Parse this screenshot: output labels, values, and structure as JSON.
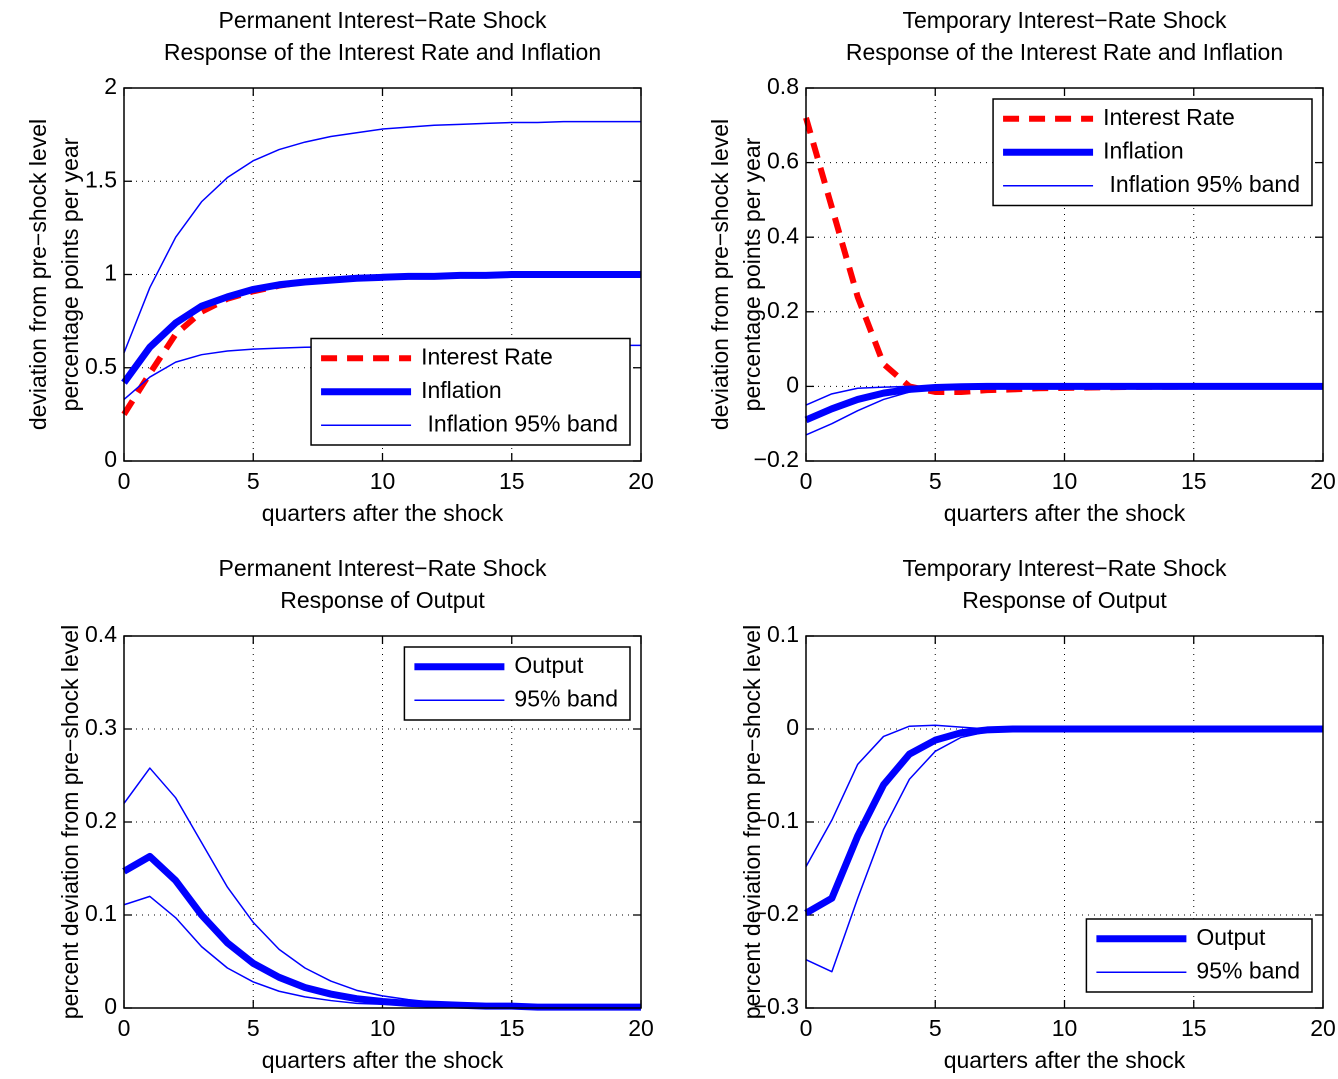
{
  "chart_data": [
    {
      "type": "line",
      "title": "Permanent Interest−Rate Shock",
      "subtitle": "Response of the Interest Rate and Inflation",
      "x_label": "quarters after the shock",
      "y_label": [
        "deviation from pre−shock level",
        "percentage points  per year"
      ],
      "x": [
        0,
        1,
        2,
        3,
        4,
        5,
        6,
        7,
        8,
        9,
        10,
        11,
        12,
        13,
        14,
        15,
        16,
        17,
        18,
        19,
        20
      ],
      "xlim": [
        0,
        20
      ],
      "xticks": [
        0,
        5,
        10,
        15,
        20
      ],
      "ylim": [
        0,
        2
      ],
      "yticks": [
        0,
        0.5,
        1,
        1.5,
        2
      ],
      "grid": true,
      "legend": "lower right",
      "series": [
        {
          "name": "Interest Rate",
          "color": "#ff0000",
          "linestyle": "dashed",
          "linewidth": 6,
          "values": [
            0.25,
            0.47,
            0.68,
            0.8,
            0.87,
            0.91,
            0.94,
            0.96,
            0.97,
            0.98,
            0.985,
            0.99,
            0.99,
            0.995,
            0.995,
            1,
            1,
            1,
            1,
            1,
            1
          ]
        },
        {
          "name": "Inflation",
          "color": "#0000ff",
          "linestyle": "solid",
          "linewidth": 7,
          "values": [
            0.42,
            0.61,
            0.74,
            0.83,
            0.88,
            0.92,
            0.945,
            0.96,
            0.97,
            0.98,
            0.985,
            0.99,
            0.99,
            0.995,
            0.995,
            1,
            1,
            1,
            1,
            1,
            1
          ]
        },
        {
          "name": " Inflation 95% band",
          "color": "#0000ff",
          "linestyle": "solid",
          "linewidth": 1.5,
          "upper": [
            0.58,
            0.93,
            1.2,
            1.39,
            1.52,
            1.61,
            1.67,
            1.71,
            1.74,
            1.76,
            1.78,
            1.79,
            1.8,
            1.805,
            1.81,
            1.815,
            1.815,
            1.82,
            1.82,
            1.82,
            1.82
          ],
          "lower": [
            0.33,
            0.45,
            0.53,
            0.57,
            0.59,
            0.6,
            0.605,
            0.61,
            0.612,
            0.615,
            0.615,
            0.617,
            0.618,
            0.619,
            0.62,
            0.62,
            0.62,
            0.62,
            0.62,
            0.62,
            0.62
          ]
        }
      ]
    },
    {
      "type": "line",
      "title": "Temporary Interest−Rate Shock",
      "subtitle": "Response of the Interest Rate and Inflation",
      "x_label": "quarters after the shock",
      "y_label": [
        "deviation from pre−shock level",
        "percentage points  per year"
      ],
      "x": [
        0,
        1,
        2,
        3,
        4,
        5,
        6,
        7,
        8,
        9,
        10,
        11,
        12,
        13,
        14,
        15,
        16,
        17,
        18,
        19,
        20
      ],
      "xlim": [
        0,
        20
      ],
      "xticks": [
        0,
        5,
        10,
        15,
        20
      ],
      "ylim": [
        -0.2,
        0.8
      ],
      "yticks": [
        {
          "value": -0.2,
          "label": "−0.2"
        },
        0,
        0.2,
        0.4,
        0.6,
        0.8
      ],
      "grid": true,
      "legend": "upper right",
      "series": [
        {
          "name": "Interest Rate",
          "color": "#ff0000",
          "linestyle": "dashed",
          "linewidth": 6,
          "values": [
            0.72,
            0.48,
            0.24,
            0.06,
            0.0,
            -0.015,
            -0.015,
            -0.01,
            -0.008,
            -0.005,
            -0.004,
            -0.003,
            -0.002,
            -0.001,
            -0.001,
            0,
            0,
            0,
            0,
            0,
            0
          ]
        },
        {
          "name": "Inflation",
          "color": "#0000ff",
          "linestyle": "solid",
          "linewidth": 7,
          "values": [
            -0.09,
            -0.06,
            -0.035,
            -0.018,
            -0.008,
            -0.003,
            -0.001,
            0,
            0,
            0,
            0,
            0,
            0,
            0,
            0,
            0,
            0,
            0,
            0,
            0,
            0
          ]
        },
        {
          "name": " Inflation 95% band",
          "color": "#0000ff",
          "linestyle": "solid",
          "linewidth": 1.5,
          "upper": [
            -0.05,
            -0.02,
            -0.005,
            -0.002,
            0,
            0,
            0,
            0,
            0,
            0,
            0,
            0,
            0,
            0,
            0,
            0,
            0,
            0,
            0,
            0,
            0
          ],
          "lower": [
            -0.13,
            -0.1,
            -0.065,
            -0.035,
            -0.015,
            -0.005,
            -0.002,
            0,
            0,
            0,
            0,
            0,
            0,
            0,
            0,
            0,
            0,
            0,
            0,
            0,
            0
          ]
        }
      ]
    },
    {
      "type": "line",
      "title": "Permanent Interest−Rate Shock",
      "subtitle": "Response of Output",
      "x_label": "quarters after the shock",
      "y_label": [
        "percent deviation from pre−shock level"
      ],
      "x": [
        0,
        1,
        2,
        3,
        4,
        5,
        6,
        7,
        8,
        9,
        10,
        11,
        12,
        13,
        14,
        15,
        16,
        17,
        18,
        19,
        20
      ],
      "xlim": [
        0,
        20
      ],
      "xticks": [
        0,
        5,
        10,
        15,
        20
      ],
      "ylim": [
        0,
        0.4
      ],
      "yticks": [
        0,
        0.1,
        0.2,
        0.3,
        0.4
      ],
      "grid": true,
      "legend": "upper right",
      "series": [
        {
          "name": "Output",
          "color": "#0000ff",
          "linestyle": "solid",
          "linewidth": 7,
          "values": [
            0.147,
            0.163,
            0.137,
            0.1,
            0.07,
            0.048,
            0.033,
            0.022,
            0.015,
            0.01,
            0.007,
            0.005,
            0.004,
            0.003,
            0.002,
            0.002,
            0.001,
            0.001,
            0.001,
            0.001,
            0.001
          ]
        },
        {
          "name": "95% band",
          "color": "#0000ff",
          "linestyle": "solid",
          "linewidth": 1.5,
          "upper": [
            0.22,
            0.258,
            0.226,
            0.178,
            0.13,
            0.092,
            0.063,
            0.043,
            0.029,
            0.019,
            0.013,
            0.009,
            0.006,
            0.004,
            0.003,
            0.002,
            0.002,
            0.001,
            0.001,
            0.001,
            0.001
          ],
          "lower": [
            0.111,
            0.12,
            0.097,
            0.066,
            0.043,
            0.028,
            0.018,
            0.012,
            0.008,
            0.005,
            0.004,
            0.003,
            0.002,
            0.001,
            0.001,
            0.001,
            0.001,
            0.001,
            0.001,
            0.001,
            0.001
          ]
        }
      ]
    },
    {
      "type": "line",
      "title": "Temporary Interest−Rate Shock",
      "subtitle": "Response of Output",
      "x_label": "quarters after the shock",
      "y_label": [
        "percent deviation from pre−shock level"
      ],
      "x": [
        0,
        1,
        2,
        3,
        4,
        5,
        6,
        7,
        8,
        9,
        10,
        11,
        12,
        13,
        14,
        15,
        16,
        17,
        18,
        19,
        20
      ],
      "xlim": [
        0,
        20
      ],
      "xticks": [
        0,
        5,
        10,
        15,
        20
      ],
      "ylim": [
        -0.3,
        0.1
      ],
      "yticks": [
        {
          "value": -0.3,
          "label": "−0.3"
        },
        {
          "value": -0.2,
          "label": "−0.2"
        },
        {
          "value": -0.1,
          "label": "−0.1"
        },
        0,
        0.1
      ],
      "grid": true,
      "legend": "lower right",
      "series": [
        {
          "name": "Output",
          "color": "#0000ff",
          "linestyle": "solid",
          "linewidth": 7,
          "values": [
            -0.198,
            -0.182,
            -0.115,
            -0.06,
            -0.027,
            -0.012,
            -0.004,
            -0.001,
            0,
            0,
            0,
            0,
            0,
            0,
            0,
            0,
            0,
            0,
            0,
            0,
            0
          ]
        },
        {
          "name": "95% band",
          "color": "#0000ff",
          "linestyle": "solid",
          "linewidth": 1.5,
          "upper": [
            -0.148,
            -0.098,
            -0.038,
            -0.008,
            0.003,
            0.004,
            0.002,
            0,
            0,
            0,
            0,
            0,
            0,
            0,
            0,
            0,
            0,
            0,
            0,
            0,
            0
          ],
          "lower": [
            -0.248,
            -0.261,
            -0.182,
            -0.108,
            -0.054,
            -0.024,
            -0.009,
            -0.003,
            -0.001,
            0,
            0,
            0,
            0,
            0,
            0,
            0,
            0,
            0,
            0,
            0,
            0
          ]
        }
      ]
    }
  ]
}
